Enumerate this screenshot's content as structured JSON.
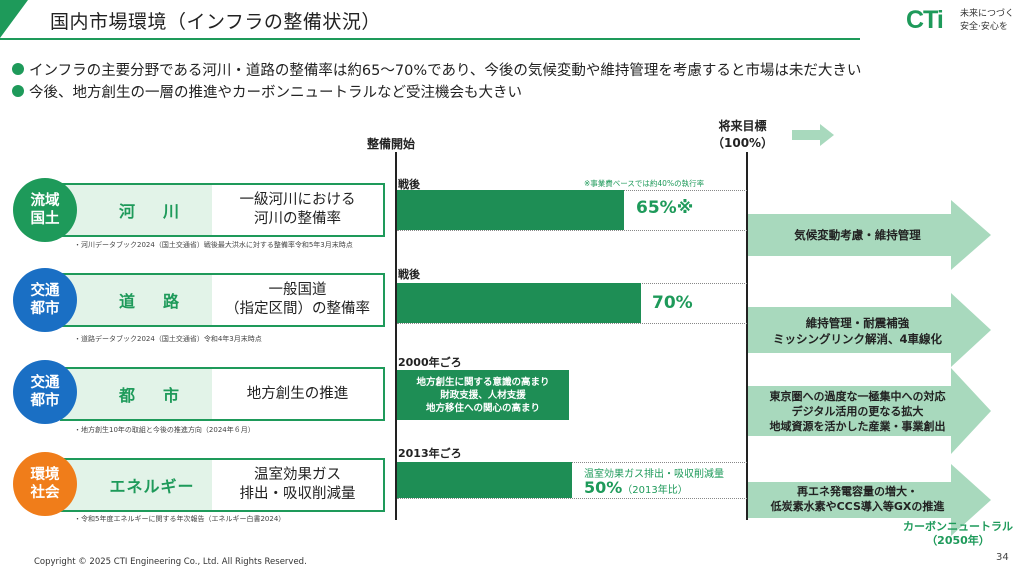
{
  "header": {
    "title": "国内市場環境（インフラの整備状況）",
    "logo_mark": "CTi",
    "logo_slogan_line1": "未来につづく",
    "logo_slogan_line2": "安全·安心を"
  },
  "bullets": [
    "インフラの主要分野である河川・道路の整備率は約65～70%であり、今後の気候変動や維持管理を考慮すると市場は未だ大きい",
    "今後、地方創生の一層の推進やカーボンニュートラルなど受注機会も大きい"
  ],
  "columns": {
    "start_label": "整備開始",
    "goal_label_line1": "将来目標",
    "goal_label_line2": "（100%）"
  },
  "rows": [
    {
      "circle_line1": "流域",
      "circle_line2": "国土",
      "circle_color": "#1e9a5a",
      "category": "河　川",
      "desc_line1": "一級河川における",
      "desc_line2": "河川の整備率",
      "source": "・河川データブック2024（国土交通省）戦後最大洪水に対する整備率令和5年3月末時点",
      "era": "戦後",
      "note": "※事業費ベースでは約40%の執行率",
      "percent_label": "65%※",
      "percent_value": 65,
      "arrow_line1": "気候変動考慮・維持管理",
      "arrow_line2": "",
      "arrow_line3": ""
    },
    {
      "circle_line1": "交通",
      "circle_line2": "都市",
      "circle_color": "#1a6fc4",
      "category": "道　路",
      "desc_line1": "一般国道",
      "desc_line2": "（指定区間）の整備率",
      "source": "・道路データブック2024（国土交通省）令和4年3月末時点",
      "era": "戦後",
      "percent_label": "70%",
      "percent_value": 70,
      "arrow_line1": "維持管理・耐震補強",
      "arrow_line2": "ミッシングリンク解消、4車線化",
      "arrow_line3": ""
    },
    {
      "circle_line1": "交通",
      "circle_line2": "都市",
      "circle_color": "#1a6fc4",
      "category": "都　市",
      "desc_line1": "地方創生の推進",
      "desc_line2": "",
      "source": "・地方創生10年の取組と今後の推進方向（2024年６月）",
      "era": "2000年ごろ",
      "bar_text_line1": "地方創生に関する意識の高まり",
      "bar_text_line2": "財政支援、人材支援",
      "bar_text_line3": "地方移住への関心の高まり",
      "arrow_line1": "東京圏への過度な一極集中への対応",
      "arrow_line2": "デジタル活用の更なる拡大",
      "arrow_line3": "地域資源を活かした産業・事業創出"
    },
    {
      "circle_line1": "環境",
      "circle_line2": "社会",
      "circle_color": "#f07d1a",
      "category": "エネルギー",
      "desc_line1": "温室効果ガス",
      "desc_line2": "排出・吸収削減量",
      "source": "・令和5年度エネルギーに関する年次報告（エネルギー白書2024）",
      "era": "2013年ごろ",
      "faint_label": "温室効果ガス排出・吸収削減量",
      "percent_label": "50%",
      "percent_sub": "（2013年比）",
      "percent_value": 50,
      "arrow_line1": "再エネ発電容量の増大・",
      "arrow_line2": "低炭素水素やCCS導入等GXの推進",
      "arrow_line3": ""
    }
  ],
  "carbon_neutral_line1": "カーボンニュートラル",
  "carbon_neutral_line2": "（2050年）",
  "footer": {
    "copyright": "Copyright © 2025 CTI Engineering Co., Ltd. All Rights Reserved.",
    "page_number": "34"
  },
  "colors": {
    "accent_green": "#1e9a5a",
    "bar_green": "#1e8e55",
    "arrow_green": "#a8d9bd",
    "blue": "#1a6fc4",
    "orange": "#f07d1a"
  }
}
